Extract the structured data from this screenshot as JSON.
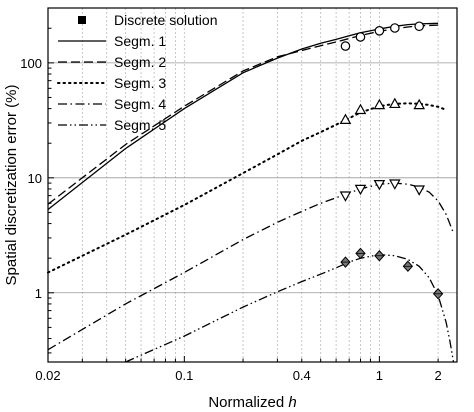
{
  "chart_data": {
    "type": "line",
    "xlabel_prefix": "Normalized ",
    "xlabel_var": "h",
    "ylabel": "Spatial discretization error  (%)",
    "x_scale": "log",
    "y_scale": "log",
    "xlim": [
      0.02,
      2.5
    ],
    "ylim": [
      0.25,
      300
    ],
    "x_ticks": [
      {
        "value": 0.02,
        "label": "0.02"
      },
      {
        "value": 0.1,
        "label": "0.1"
      },
      {
        "value": 0.4,
        "label": "0.4"
      },
      {
        "value": 1,
        "label": "1"
      },
      {
        "value": 2,
        "label": "2"
      }
    ],
    "y_ticks": [
      {
        "value": 1,
        "label": "1"
      },
      {
        "value": 10,
        "label": "10"
      },
      {
        "value": 100,
        "label": "100"
      }
    ],
    "grid": "major horizontal solid, minor vertical dotted",
    "legend_position": "top-left",
    "legend": [
      {
        "label": "Discrete solution",
        "style": "marker"
      },
      {
        "label": "Segm. 1",
        "style": "solid"
      },
      {
        "label": "Segm. 2",
        "style": "dashed"
      },
      {
        "label": "Segm. 3",
        "style": "dotted"
      },
      {
        "label": "Segm. 4",
        "style": "dashdot"
      },
      {
        "label": "Segm. 5",
        "style": "dashdotdot"
      }
    ],
    "series": [
      {
        "name": "Segm. 1",
        "style": "solid",
        "x": [
          0.02,
          0.05,
          0.1,
          0.2,
          0.3,
          0.4,
          0.5,
          0.6,
          0.7,
          0.8,
          1.0,
          1.2,
          1.4,
          1.6,
          2.0
        ],
        "y": [
          5.3,
          18,
          40,
          82,
          110,
          132,
          148,
          160,
          172,
          183,
          197,
          208,
          215,
          218,
          221
        ]
      },
      {
        "name": "Segm. 2",
        "style": "dashed",
        "x": [
          0.02,
          0.05,
          0.1,
          0.2,
          0.3,
          0.4,
          0.5,
          0.6,
          0.7,
          0.8,
          1.0,
          1.2,
          1.4,
          1.6,
          2.0
        ],
        "y": [
          5.9,
          19.5,
          42,
          85,
          113,
          128,
          141,
          152,
          163,
          173,
          188,
          198,
          205,
          210,
          213
        ]
      },
      {
        "name": "Segm. 3",
        "style": "dotted",
        "x": [
          0.02,
          0.05,
          0.1,
          0.2,
          0.3,
          0.4,
          0.5,
          0.6,
          0.7,
          0.8,
          1.0,
          1.2,
          1.4,
          1.6,
          1.8,
          2.0,
          2.2
        ],
        "y": [
          1.5,
          3.2,
          5.8,
          11,
          16,
          21,
          25,
          29,
          33,
          37,
          42,
          44,
          44.5,
          44,
          43,
          41.5,
          39
        ]
      },
      {
        "name": "Segm. 4",
        "style": "dashdot",
        "x": [
          0.02,
          0.05,
          0.1,
          0.2,
          0.3,
          0.4,
          0.5,
          0.6,
          0.7,
          0.8,
          1.0,
          1.2,
          1.4,
          1.6,
          1.8,
          2.0,
          2.2,
          2.4
        ],
        "y": [
          0.32,
          0.8,
          1.5,
          2.9,
          4.1,
          5.1,
          6.0,
          6.7,
          7.4,
          8.0,
          8.8,
          9.0,
          8.8,
          8.3,
          7.5,
          6.3,
          4.8,
          3.3
        ]
      },
      {
        "name": "Segm. 5",
        "style": "dashdotdot",
        "x": [
          0.05,
          0.1,
          0.2,
          0.3,
          0.4,
          0.5,
          0.6,
          0.7,
          0.8,
          1.0,
          1.2,
          1.4,
          1.6,
          1.8,
          2.0,
          2.2,
          2.3,
          2.4
        ],
        "y": [
          0.25,
          0.42,
          0.75,
          1.02,
          1.25,
          1.45,
          1.65,
          1.85,
          2.0,
          2.15,
          2.1,
          1.95,
          1.7,
          1.35,
          0.95,
          0.55,
          0.38,
          0.25
        ]
      }
    ],
    "markers": [
      {
        "group": "Segm. 1 / Segm. 2",
        "shape": "circle",
        "x": [
          0.67,
          0.8,
          1.0,
          1.2,
          1.6
        ],
        "y": [
          140,
          168,
          190,
          201,
          208
        ]
      },
      {
        "group": "Segm. 3",
        "shape": "triangle-up",
        "x": [
          0.67,
          0.8,
          1.0,
          1.2,
          1.6
        ],
        "y": [
          32,
          39,
          43,
          44,
          43
        ]
      },
      {
        "group": "Segm. 4",
        "shape": "triangle-down",
        "x": [
          0.67,
          0.8,
          1.0,
          1.2,
          1.6
        ],
        "y": [
          7.0,
          8.0,
          8.8,
          8.9,
          7.9
        ]
      },
      {
        "group": "Segm. 5",
        "shape": "diamond",
        "x": [
          0.67,
          0.8,
          1.0,
          1.4,
          2.0
        ],
        "y": [
          1.85,
          2.2,
          2.1,
          1.7,
          0.98
        ]
      }
    ]
  }
}
